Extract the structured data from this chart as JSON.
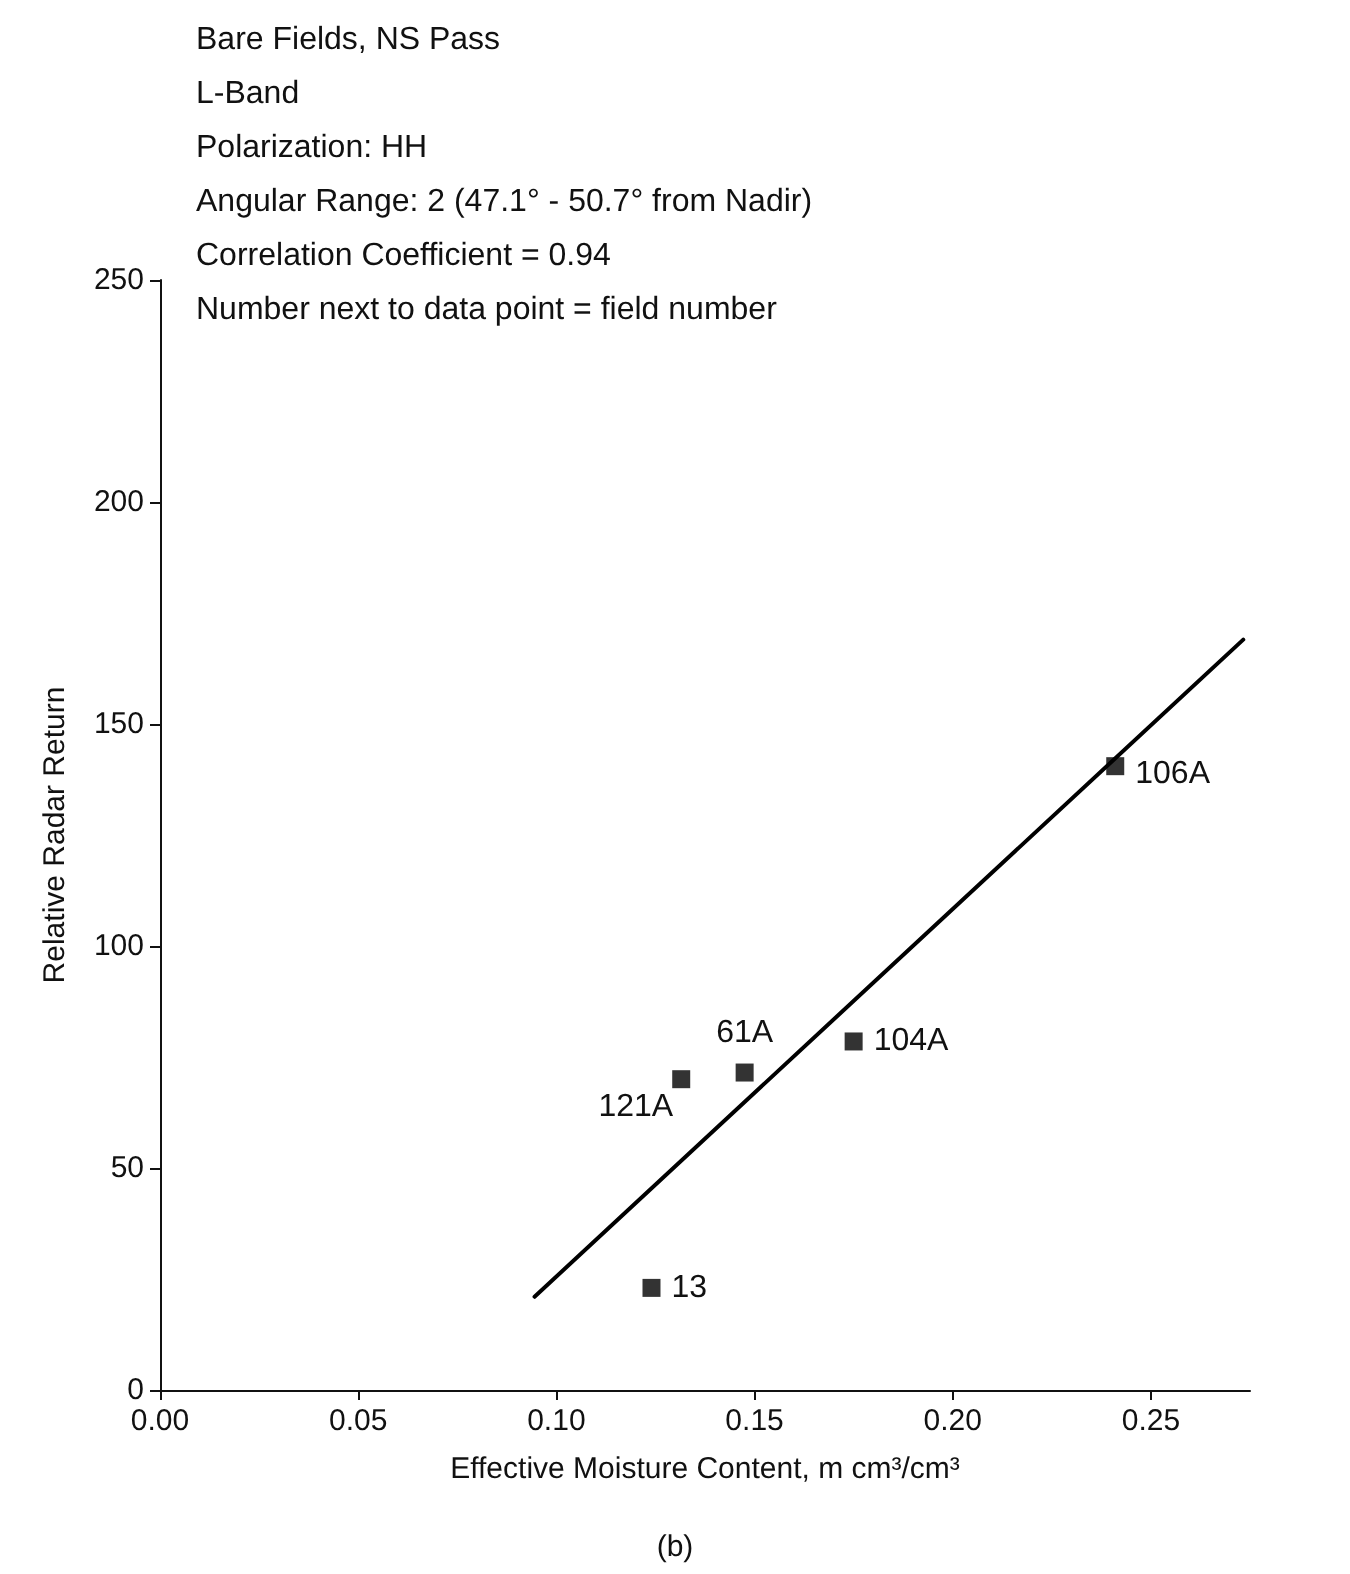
{
  "chart_data": {
    "type": "scatter",
    "title": "Bare Fields, NS Pass",
    "annotations": [
      "L-Band",
      "Polarization: HH",
      "Angular Range: 2 (47.1° - 50.7° from Nadir)",
      "Correlation Coefficient = 0.94",
      "Number next to data point = field number",
      {
        "text": "13",
        "x": 0.124,
        "y": 23
      },
      {
        "text": "121A",
        "x": 0.1315,
        "y": 70
      },
      {
        "text": "61A",
        "x": 0.1475,
        "y": 71.5
      },
      {
        "text": "104A",
        "x": 0.175,
        "y": 78.5
      },
      {
        "text": "106A",
        "x": 0.241,
        "y": 140.5
      },
      "(b)"
    ],
    "xlabel": "Effective Moisture Content, m cm³/cm³",
    "ylabel": "Relative Radar Return",
    "series": [
      {
        "color": "#000000",
        "marker": "square",
        "x": [
          0.124,
          0.1315,
          0.1475,
          0.175,
          0.241
        ],
        "values": [
          23,
          70,
          71.5,
          78.5,
          140.5
        ]
      },
      {
        "type": "line",
        "color": "#000000",
        "marker": "none",
        "line_style": "solid",
        "x": [
          0.0945,
          0.2733
        ],
        "values": [
          21,
          169
        ]
      }
    ],
    "xlim": [
      0,
      0.275
    ],
    "xticks": [
      {
        "value": 0,
        "label": "0.00"
      },
      {
        "value": 0.05,
        "label": "0.05"
      },
      {
        "value": 0.1,
        "label": "0.10"
      },
      {
        "value": 0.15,
        "label": "0.15"
      },
      {
        "value": 0.2,
        "label": "0.20"
      },
      {
        "value": 0.25,
        "label": "0.25"
      }
    ],
    "ylim": [
      0,
      250
    ],
    "yticks": [
      0,
      50,
      100,
      150,
      200,
      250
    ],
    "grid": false
  }
}
